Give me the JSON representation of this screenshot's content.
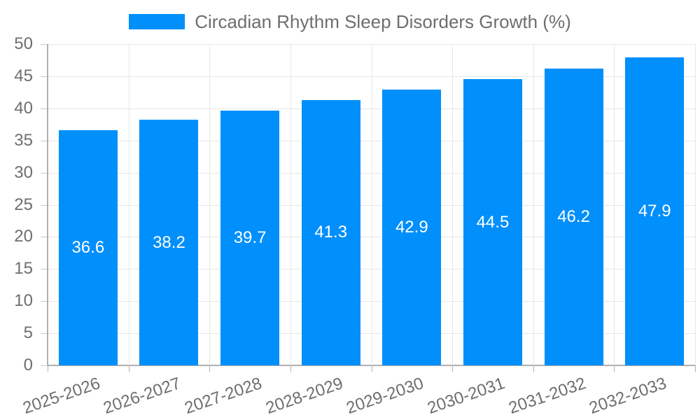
{
  "legend": {
    "label": "Circadian Rhythm Sleep Disorders Growth (%)"
  },
  "chart_data": {
    "type": "bar",
    "title": "Circadian Rhythm Sleep Disorders Growth (%)",
    "categories": [
      "2025-2026",
      "2026-2027",
      "2027-2028",
      "2028-2029",
      "2029-2030",
      "2030-2031",
      "2031-2032",
      "2032-2033"
    ],
    "values": [
      36.6,
      38.2,
      39.7,
      41.3,
      42.9,
      44.5,
      46.2,
      47.9
    ],
    "xlabel": "",
    "ylabel": "",
    "ylim": [
      0,
      50
    ],
    "ytick_step": 5,
    "ytick_labels": [
      "0",
      "5",
      "10",
      "15",
      "20",
      "25",
      "30",
      "35",
      "40",
      "45",
      "50"
    ],
    "grid": true,
    "legend_position": "top",
    "bar_color": "#008FFB",
    "value_label_color": "#ffffff",
    "axis_text_color": "#6e6e6e"
  }
}
